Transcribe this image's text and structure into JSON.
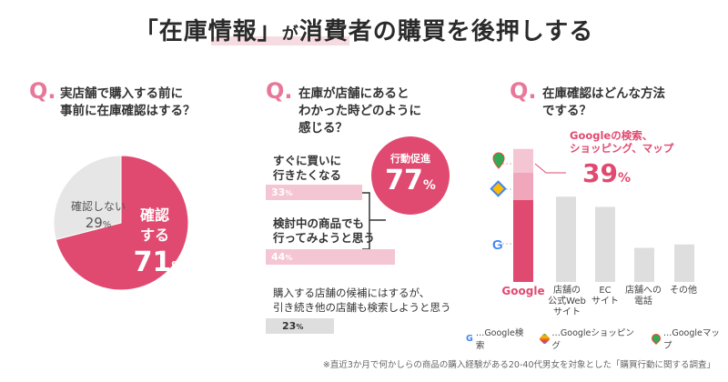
{
  "title": {
    "text": "「在庫情報」が消費者の購買を後押しする",
    "prefix": "「",
    "highlight": "在庫情報",
    "suffix_bracket": "」",
    "rest_small": "が",
    "rest": "消費者の購買を後押しする"
  },
  "colors": {
    "accent": "#e14a70",
    "accent_light": "#f4c5d2",
    "accent_mid": "#f0a7bb",
    "gray": "#e6e6e6",
    "gray_bar": "#dedede"
  },
  "q1": {
    "mark": "Q.",
    "question_line1": "実店舗で購入する前に",
    "question_line2": "事前に在庫確認はする？"
  },
  "q2": {
    "mark": "Q.",
    "question_line1": "在庫が店舗にあると",
    "question_line2": "わかった時どのように",
    "question_line3": "感じる？",
    "answers": [
      {
        "line1": "すぐに買いに",
        "line2": "行きたくなる",
        "pct": "33",
        "unit": "%",
        "value": 33
      },
      {
        "line1": "検討中の商品でも",
        "line2": "行ってみようと思う",
        "pct": "44",
        "unit": "%",
        "value": 44
      },
      {
        "line1": "購入する店舗の候補にはするが、",
        "line2": "引き続き他の店舗も検索しようと思う",
        "pct": "23",
        "unit": "%",
        "value": 23
      }
    ],
    "circle_label": "行動促進",
    "circle_value": "77",
    "circle_unit": "%"
  },
  "q3": {
    "mark": "Q.",
    "question_line1": "在庫確認はどんな方法",
    "question_line2": "でする？",
    "callout_line1": "Googleの検索、",
    "callout_line2": "ショッピング、マップ",
    "callout_value": "39",
    "callout_unit": "%",
    "x_labels": [
      [
        "Google"
      ],
      [
        "店舗の",
        "公式Web",
        "サイト"
      ],
      [
        "EC",
        "サイト"
      ],
      [
        "店舗への",
        "電話"
      ],
      [
        "その他"
      ]
    ],
    "legend": [
      "…Google検索",
      "…Googleショッピング",
      "…Googleマップ"
    ]
  },
  "footnote": "※直近3か月で何かしらの商品の購入経験がある20-40代男女を対象とした「購買行動に関する調査」",
  "chart_data": [
    {
      "type": "pie",
      "categories": [
        "確認する",
        "確認しない"
      ],
      "values": [
        71,
        29
      ],
      "labels": {
        "yes_line1": "確認",
        "yes_line2": "する",
        "yes_value": "71",
        "no_label": "確認しない",
        "no_value": "29",
        "unit": "%"
      }
    },
    {
      "type": "bar",
      "orientation": "horizontal",
      "categories": [
        "すぐに買いに行きたくなる",
        "検討中の商品でも行ってみようと思う",
        "購入する店舗の候補にはするが、引き続き他の店舗も検索しようと思う"
      ],
      "values": [
        33,
        44,
        23
      ]
    },
    {
      "type": "bar",
      "stacked_first_bar": true,
      "categories": [
        "Google",
        "店舗の公式Webサイト",
        "ECサイト",
        "店舗への電話",
        "その他"
      ],
      "values": [
        39,
        25,
        22,
        10,
        11
      ],
      "google_breakdown": [
        {
          "name": "Google検索",
          "value": 24
        },
        {
          "name": "Googleショッピング",
          "value": 8
        },
        {
          "name": "Googleマップ",
          "value": 7
        }
      ]
    }
  ]
}
